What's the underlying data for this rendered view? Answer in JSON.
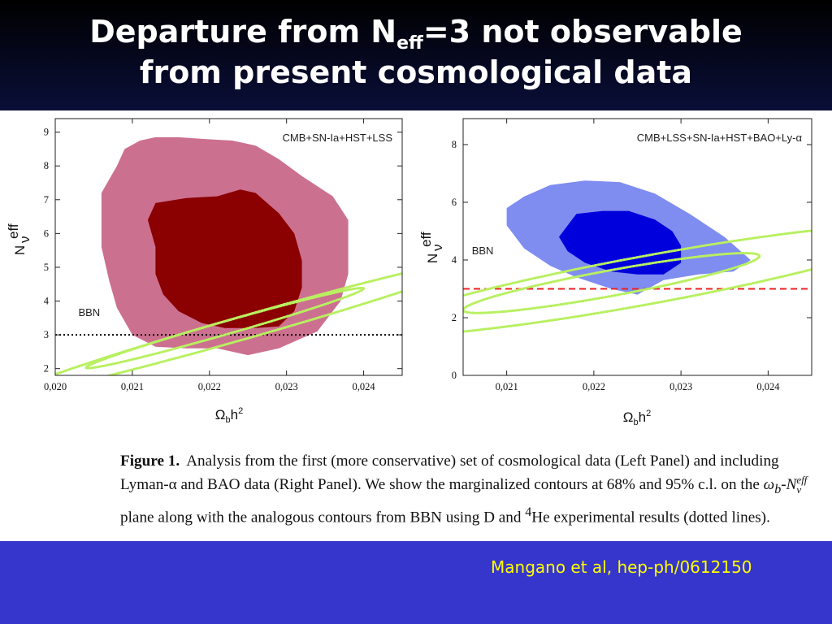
{
  "slide": {
    "title_part1": "Departure from N",
    "title_sub": "eff",
    "title_part2": "=3 not observable",
    "title_line2": "from present cosmological data",
    "credit": "Mangano et al, hep-ph/0612150"
  },
  "caption": {
    "fig_label": "Figure 1.",
    "text_a": "Analysis from the first (more conservative) set of cosmological data (Left Panel) and including Lyman-α and BAO data (Right Panel). We show the marginalized contours at 68% and 95% c.l. on the ",
    "omega_b": "ω",
    "omega_sub": "b",
    "dash": "-",
    "n_sym": "N",
    "n_sup": "eff",
    "n_sub": "ν",
    "text_b": " plane along with the analogous contours from BBN using D and ",
    "he_sup": "4",
    "text_c": "He experimental results (dotted lines)."
  },
  "chart_data": [
    {
      "type": "contour",
      "panel": "left",
      "legend": "CMB+SN-Ia+HST+LSS",
      "xlabel_main": "Ω",
      "xlabel_sub": "b",
      "xlabel_tail": "h",
      "xlabel_sup": "2",
      "ylabel_main": "N",
      "ylabel_sup": "eff",
      "ylabel_sub": "ν",
      "xlim": [
        0.02,
        0.0245
      ],
      "ylim": [
        1.8,
        9.4
      ],
      "xticks": [
        0.02,
        0.021,
        0.022,
        0.023,
        0.024
      ],
      "xtick_labels": [
        "0,020",
        "0,021",
        "0,022",
        "0,023",
        "0,024"
      ],
      "yticks": [
        2,
        3,
        4,
        5,
        6,
        7,
        8,
        9
      ],
      "ytick_labels": [
        "2",
        "3",
        "4",
        "5",
        "6",
        "7",
        "8",
        "9"
      ],
      "reference_line": {
        "y": 3,
        "style": "dotted",
        "color": "#000000"
      },
      "bbn_label": "BBN",
      "bbn_label_at": {
        "x": 0.0203,
        "y": 3.55
      },
      "colors": {
        "c95": "#cc7090",
        "c68": "#8b0000",
        "bbn": "#b8f060"
      },
      "contour_95": [
        [
          0.0208,
          8.0
        ],
        [
          0.0209,
          8.5
        ],
        [
          0.0211,
          8.75
        ],
        [
          0.0213,
          8.85
        ],
        [
          0.0216,
          8.85
        ],
        [
          0.0219,
          8.8
        ],
        [
          0.0223,
          8.75
        ],
        [
          0.0226,
          8.6
        ],
        [
          0.0229,
          8.2
        ],
        [
          0.0232,
          7.7
        ],
        [
          0.0236,
          7.1
        ],
        [
          0.0238,
          6.4
        ],
        [
          0.0238,
          5.6
        ],
        [
          0.0238,
          4.8
        ],
        [
          0.0237,
          4.0
        ],
        [
          0.0234,
          3.1
        ],
        [
          0.0229,
          2.6
        ],
        [
          0.0225,
          2.4
        ],
        [
          0.0221,
          2.6
        ],
        [
          0.0217,
          2.6
        ],
        [
          0.0213,
          2.65
        ],
        [
          0.021,
          3.0
        ],
        [
          0.0208,
          3.8
        ],
        [
          0.0207,
          4.6
        ],
        [
          0.0206,
          5.6
        ],
        [
          0.0206,
          6.4
        ],
        [
          0.0206,
          7.2
        ],
        [
          0.0207,
          7.6
        ]
      ],
      "contour_68": [
        [
          0.0213,
          6.9
        ],
        [
          0.0217,
          7.05
        ],
        [
          0.0221,
          7.1
        ],
        [
          0.0224,
          7.3
        ],
        [
          0.0226,
          7.2
        ],
        [
          0.0229,
          6.6
        ],
        [
          0.0231,
          6.0
        ],
        [
          0.0232,
          5.2
        ],
        [
          0.0232,
          4.4
        ],
        [
          0.0231,
          3.7
        ],
        [
          0.0229,
          3.25
        ],
        [
          0.0226,
          3.2
        ],
        [
          0.0222,
          3.2
        ],
        [
          0.0219,
          3.35
        ],
        [
          0.0216,
          3.7
        ],
        [
          0.0214,
          4.2
        ],
        [
          0.0213,
          4.8
        ],
        [
          0.0213,
          5.6
        ],
        [
          0.0212,
          6.4
        ]
      ],
      "bbn_95": {
        "cx": 0.0225,
        "cy": 3.25,
        "rx": 0.0031,
        "ry": 0.35,
        "tilt_slope": 650
      },
      "bbn_68": {
        "cx": 0.0222,
        "cy": 3.2,
        "rx": 0.0018,
        "ry": 0.2,
        "tilt_slope": 650
      }
    },
    {
      "type": "contour",
      "panel": "right",
      "legend": "CMB+LSS+SN-Ia+HST+BAO+Ly-α",
      "xlabel_main": "Ω",
      "xlabel_sub": "b",
      "xlabel_tail": "h",
      "xlabel_sup": "2",
      "ylabel_main": "N",
      "ylabel_sup": "eff",
      "ylabel_sub": "ν",
      "xlim": [
        0.0205,
        0.0245
      ],
      "ylim": [
        0,
        8.9
      ],
      "xticks": [
        0.021,
        0.022,
        0.023,
        0.024
      ],
      "xtick_labels": [
        "0,021",
        "0,022",
        "0,023",
        "0,024"
      ],
      "yticks": [
        0,
        2,
        4,
        6,
        8
      ],
      "ytick_labels": [
        "0",
        "2",
        "4",
        "6",
        "8"
      ],
      "reference_line": {
        "y": 3,
        "style": "dashed",
        "color": "#ee2222"
      },
      "bbn_label": "BBN",
      "bbn_label_at": {
        "x": 0.0206,
        "y": 4.2
      },
      "colors": {
        "c95": "#7f8cf0",
        "c68": "#0000dd",
        "bbn": "#b8f060"
      },
      "contour_95": [
        [
          0.0212,
          6.2
        ],
        [
          0.0215,
          6.6
        ],
        [
          0.0219,
          6.75
        ],
        [
          0.0223,
          6.7
        ],
        [
          0.0227,
          6.3
        ],
        [
          0.0231,
          5.6
        ],
        [
          0.0235,
          4.8
        ],
        [
          0.0238,
          4.0
        ],
        [
          0.0236,
          3.6
        ],
        [
          0.0232,
          3.5
        ],
        [
          0.0228,
          3.3
        ],
        [
          0.0225,
          2.8
        ],
        [
          0.0222,
          3.0
        ],
        [
          0.0218,
          3.4
        ],
        [
          0.0215,
          3.8
        ],
        [
          0.0212,
          4.4
        ],
        [
          0.021,
          5.2
        ],
        [
          0.021,
          5.8
        ]
      ],
      "contour_68": [
        [
          0.0218,
          5.6
        ],
        [
          0.0221,
          5.7
        ],
        [
          0.0224,
          5.7
        ],
        [
          0.0227,
          5.4
        ],
        [
          0.0229,
          5.0
        ],
        [
          0.023,
          4.5
        ],
        [
          0.023,
          3.9
        ],
        [
          0.0228,
          3.5
        ],
        [
          0.0225,
          3.5
        ],
        [
          0.0222,
          3.6
        ],
        [
          0.0219,
          3.9
        ],
        [
          0.0217,
          4.3
        ],
        [
          0.0216,
          4.8
        ],
        [
          0.0217,
          5.2
        ]
      ],
      "bbn_95": {
        "cx": 0.0226,
        "cy": 3.3,
        "rx": 0.0031,
        "ry": 0.85,
        "tilt_slope": 550
      },
      "bbn_68": {
        "cx": 0.0222,
        "cy": 3.2,
        "rx": 0.0017,
        "ry": 0.45,
        "tilt_slope": 550
      }
    }
  ]
}
